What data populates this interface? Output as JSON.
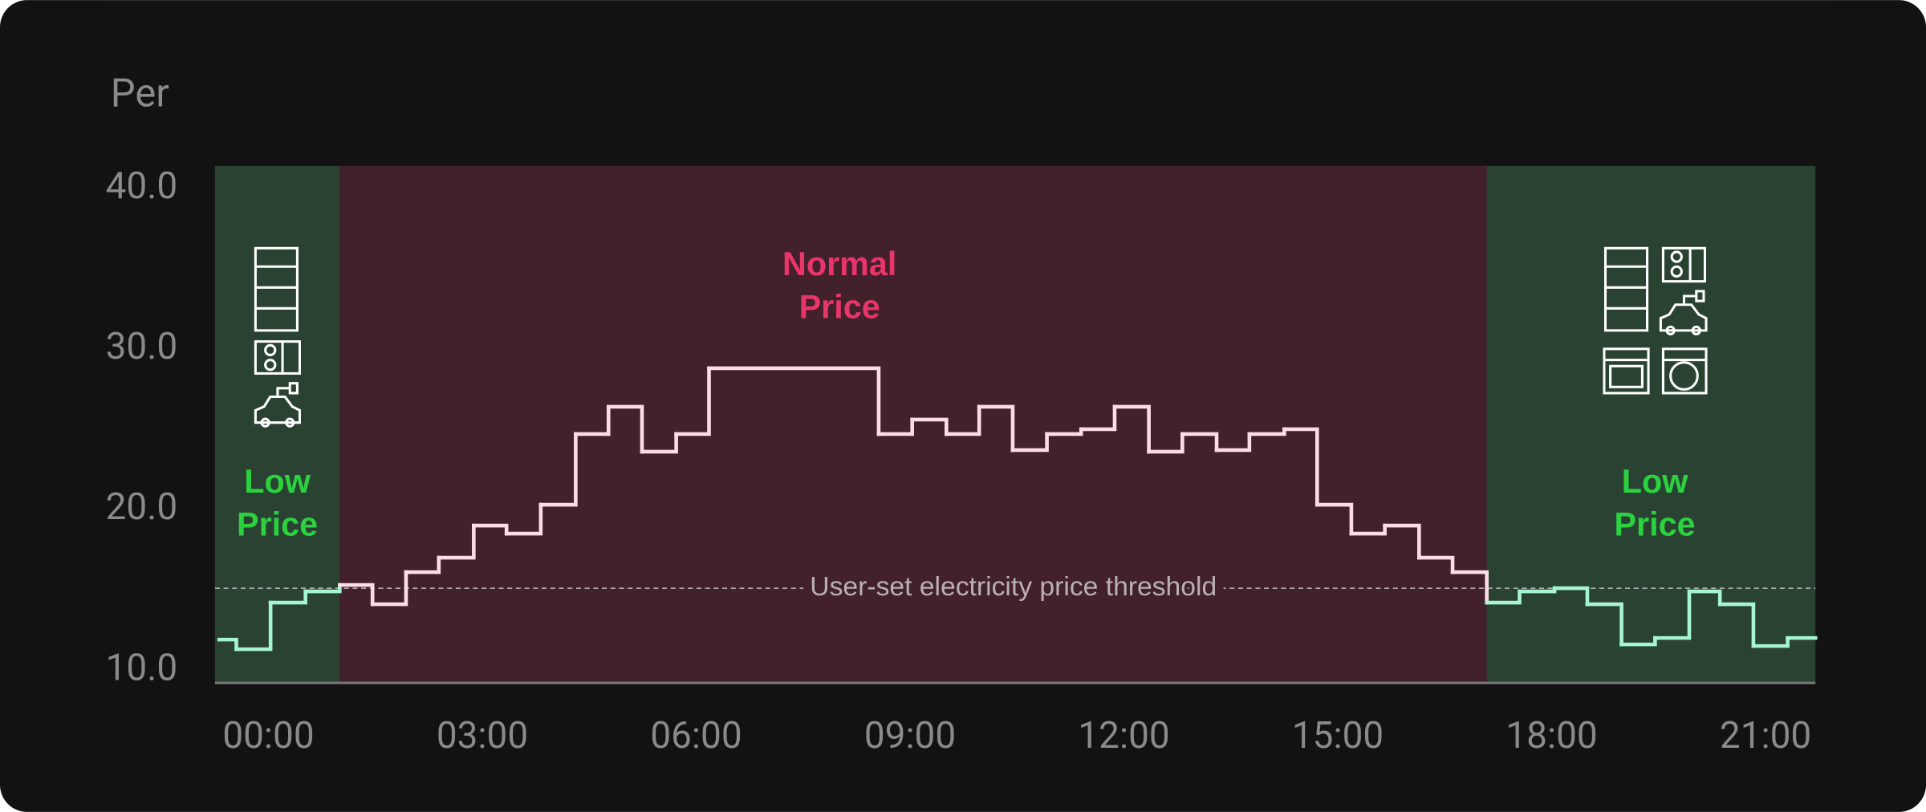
{
  "chart_data": {
    "type": "line",
    "step": "post",
    "y_label": "Per",
    "x": [
      -0.69,
      -0.45,
      0.03,
      0.52,
      1.0,
      1.46,
      1.93,
      2.39,
      2.88,
      3.34,
      3.82,
      4.31,
      4.77,
      5.24,
      5.72,
      6.18,
      8.56,
      9.03,
      9.51,
      9.97,
      10.44,
      10.92,
      11.4,
      11.87,
      12.35,
      12.82,
      13.3,
      13.76,
      14.25,
      14.71,
      15.19,
      15.66,
      16.14,
      16.61,
      17.09,
      17.55,
      18.04,
      18.5,
      18.98,
      19.45,
      19.93,
      20.36,
      20.83,
      21.31
    ],
    "values": [
      11.9,
      11.3,
      14.2,
      14.9,
      15.3,
      14.1,
      16.1,
      17.0,
      19.0,
      18.5,
      20.3,
      24.7,
      26.4,
      23.6,
      24.7,
      28.8,
      24.7,
      25.6,
      24.7,
      26.4,
      23.7,
      24.7,
      25.0,
      26.4,
      23.6,
      24.7,
      23.7,
      24.7,
      25.0,
      20.3,
      18.5,
      19.0,
      17.0,
      16.1,
      14.2,
      14.9,
      15.1,
      14.1,
      11.6,
      12.0,
      14.9,
      14.1,
      11.5,
      12.0
    ],
    "xlim": [
      -0.75,
      21.7
    ],
    "ylim": [
      9.2,
      41.4
    ],
    "xticks": [
      {
        "value": 0,
        "label": "00:00"
      },
      {
        "value": 3,
        "label": "03:00"
      },
      {
        "value": 6,
        "label": "06:00"
      },
      {
        "value": 9,
        "label": "09:00"
      },
      {
        "value": 12,
        "label": "12:00"
      },
      {
        "value": 15,
        "label": "15:00"
      },
      {
        "value": 18,
        "label": "18:00"
      },
      {
        "value": 21,
        "label": "21:00"
      }
    ],
    "yticks": [
      {
        "value": 10,
        "label": "10.0"
      },
      {
        "value": 20,
        "label": "20.0"
      },
      {
        "value": 30,
        "label": "30.0"
      },
      {
        "value": 40,
        "label": "40.0"
      }
    ],
    "zones": [
      {
        "label": "Low Price",
        "from": -0.75,
        "to": 1.0,
        "color": "#2a4232",
        "text_color": "#2bd13f",
        "line_color": "#a6f5d2"
      },
      {
        "label": "Normal Price",
        "from": 1.0,
        "to": 17.09,
        "color": "#42202c",
        "text_color": "#e8356a",
        "line_color": "#fbdde7"
      },
      {
        "label": "Low Price",
        "from": 17.09,
        "to": 21.7,
        "color": "#2a4232",
        "text_color": "#2bd13f",
        "line_color": "#a6f5d2"
      }
    ],
    "threshold": {
      "value": 15.1,
      "label": "User-set electricity price threshold"
    }
  }
}
